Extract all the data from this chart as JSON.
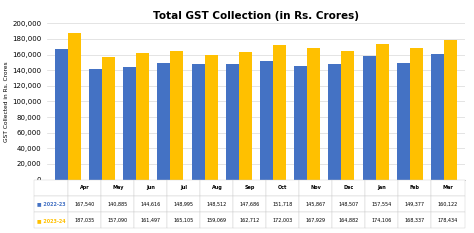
{
  "title": "Total GST Collection (in Rs. Crores)",
  "ylabel": "GST Collected in Rs. Crores",
  "months": [
    "Apr",
    "May",
    "Jun",
    "Jul",
    "Aug",
    "Sep",
    "Oct",
    "Nov",
    "Dec",
    "Jan",
    "Feb",
    "Mar"
  ],
  "series": [
    {
      "label": "2022-23",
      "color": "#4472C4",
      "values": [
        167540,
        140885,
        144616,
        148995,
        148512,
        147686,
        151718,
        145867,
        148507,
        157554,
        149377,
        160122
      ]
    },
    {
      "label": "2023-24",
      "color": "#FFC000",
      "values": [
        187035,
        157090,
        161497,
        165105,
        159069,
        162712,
        172003,
        167929,
        164882,
        174106,
        168337,
        178434
      ]
    }
  ],
  "ylim": [
    0,
    200000
  ],
  "yticks": [
    0,
    20000,
    40000,
    60000,
    80000,
    100000,
    120000,
    140000,
    160000,
    180000,
    200000
  ],
  "bg_color": "#FFFFFF",
  "grid_color": "#D9D9D9",
  "bar_width": 0.38
}
